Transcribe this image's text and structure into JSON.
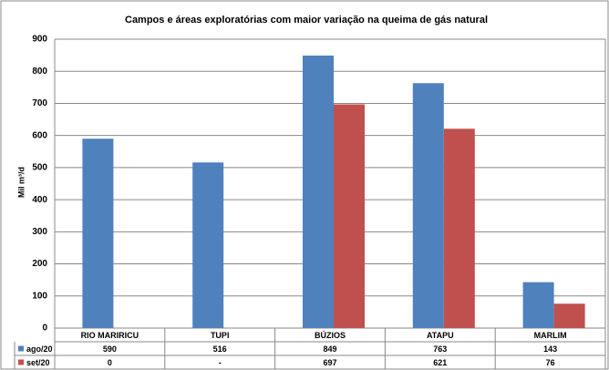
{
  "chart_data": {
    "type": "bar",
    "title": "Campos e áreas exploratórias com maior variação na queima de gás natural",
    "y_label": "Mil m³/d",
    "categories": [
      "RIO MARIRICU",
      "TUPI",
      "BÚZIOS",
      "ATAPU",
      "MARLIM"
    ],
    "series": [
      {
        "name": "ago/20",
        "color": "#4f81bd",
        "values": [
          590,
          516,
          849,
          763,
          143
        ]
      },
      {
        "name": "set/20",
        "color": "#c0504d",
        "values": [
          0,
          null,
          697,
          621,
          76
        ],
        "value_labels": [
          "0",
          "-",
          "697",
          "621",
          "76"
        ]
      }
    ],
    "ylim": [
      0,
      900
    ],
    "yticks": [
      0,
      100,
      200,
      300,
      400,
      500,
      600,
      700,
      800,
      900
    ],
    "grid": true
  }
}
